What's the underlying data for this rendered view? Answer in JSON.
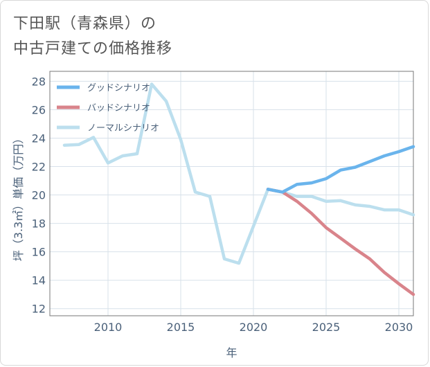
{
  "title_lines": [
    "下田駅（青森県）の",
    "中古戸建ての価格推移"
  ],
  "chart_data": {
    "type": "line",
    "title": "下田駅（青森県）の中古戸建ての価格推移",
    "xlabel": "年",
    "ylabel": "坪（3.3㎡）単価（万円）",
    "xlim": [
      2006,
      2031
    ],
    "ylim": [
      11.5,
      28.7
    ],
    "xticks": [
      2010,
      2015,
      2020,
      2025,
      2030
    ],
    "yticks": [
      12,
      14,
      16,
      18,
      20,
      22,
      24,
      26,
      28
    ],
    "grid": true,
    "legend_position": "top-left",
    "series": [
      {
        "name": "グッドシナリオ",
        "color": "#6ab4ec",
        "x": [
          2021,
          2022,
          2023,
          2024,
          2025,
          2026,
          2027,
          2028,
          2029,
          2030,
          2031
        ],
        "y": [
          20.4,
          20.2,
          20.75,
          20.85,
          21.15,
          21.75,
          21.95,
          22.35,
          22.75,
          23.05,
          23.4
        ]
      },
      {
        "name": "バッドシナリオ",
        "color": "#d9848b",
        "x": [
          2021,
          2022,
          2023,
          2024,
          2025,
          2026,
          2027,
          2028,
          2029,
          2030,
          2031
        ],
        "y": [
          20.4,
          20.2,
          19.55,
          18.7,
          17.7,
          16.95,
          16.2,
          15.5,
          14.55,
          13.75,
          13.0
        ]
      },
      {
        "name": "ノーマルシナリオ",
        "color": "#bcdfee",
        "x": [
          2007,
          2008,
          2009,
          2010,
          2011,
          2012,
          2013,
          2014,
          2015,
          2016,
          2017,
          2018,
          2019,
          2020,
          2021,
          2022,
          2023,
          2024,
          2025,
          2026,
          2027,
          2028,
          2029,
          2030,
          2031
        ],
        "y": [
          23.5,
          23.55,
          24.05,
          22.25,
          22.75,
          22.9,
          27.8,
          26.6,
          23.9,
          20.2,
          19.9,
          15.5,
          15.2,
          17.8,
          20.4,
          20.2,
          19.9,
          19.9,
          19.55,
          19.6,
          19.3,
          19.2,
          18.95,
          18.95,
          18.6
        ]
      }
    ]
  }
}
